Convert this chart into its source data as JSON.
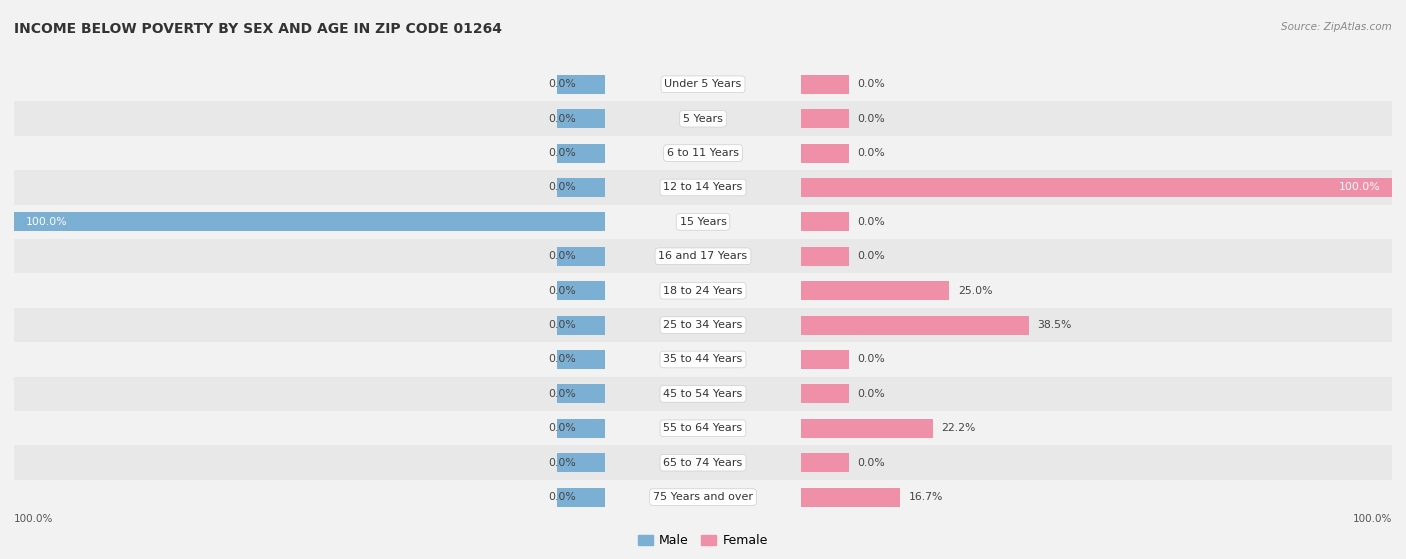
{
  "title": "INCOME BELOW POVERTY BY SEX AND AGE IN ZIP CODE 01264",
  "source": "Source: ZipAtlas.com",
  "categories": [
    "Under 5 Years",
    "5 Years",
    "6 to 11 Years",
    "12 to 14 Years",
    "15 Years",
    "16 and 17 Years",
    "18 to 24 Years",
    "25 to 34 Years",
    "35 to 44 Years",
    "45 to 54 Years",
    "55 to 64 Years",
    "65 to 74 Years",
    "75 Years and over"
  ],
  "male_values": [
    0.0,
    0.0,
    0.0,
    0.0,
    100.0,
    0.0,
    0.0,
    0.0,
    0.0,
    0.0,
    0.0,
    0.0,
    0.0
  ],
  "female_values": [
    0.0,
    0.0,
    0.0,
    100.0,
    0.0,
    0.0,
    25.0,
    38.5,
    0.0,
    0.0,
    22.2,
    0.0,
    16.7
  ],
  "male_color": "#7bafd4",
  "female_color": "#f090a8",
  "male_label": "Male",
  "female_label": "Female",
  "xlim": 100.0,
  "bg_colors": [
    "#f2f2f2",
    "#e8e8e8"
  ],
  "bar_bg_color": "#dde8f0",
  "bar_female_bg_color": "#f5dde5",
  "title_fontsize": 10,
  "label_fontsize": 8,
  "bar_height": 0.55,
  "value_fontsize": 7.8,
  "source_fontsize": 7.5
}
